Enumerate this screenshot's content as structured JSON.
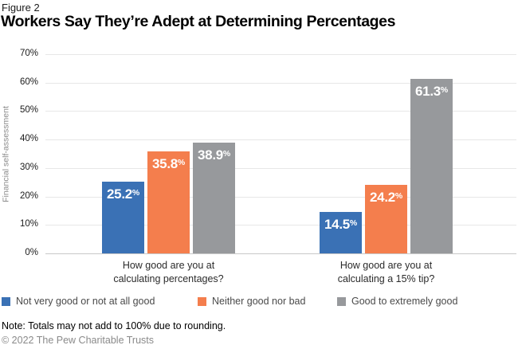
{
  "figure_label": "Figure 2",
  "title": "Workers Say They’re Adept at Determining Percentages",
  "chart_data": {
    "type": "bar",
    "title": "Workers Say They’re Adept at Determining Percentages",
    "xlabel": "",
    "ylabel": "Financial self-assessment",
    "ylim": [
      0,
      70
    ],
    "ytick_step": 10,
    "ytick_suffix": "%",
    "grid": true,
    "legend_position": "bottom-left",
    "categories": [
      "How good are you at\ncalculating percentages?",
      "How good are you at\ncalculating a 15% tip?"
    ],
    "series": [
      {
        "name": "Not very good or not at all good",
        "color": "#3A71B5",
        "values": [
          25.2,
          14.5
        ]
      },
      {
        "name": "Neither good nor bad",
        "color": "#F47E4D",
        "values": [
          35.8,
          24.2
        ]
      },
      {
        "name": "Good to extremely good",
        "color": "#97999C",
        "values": [
          38.9,
          61.3
        ]
      }
    ],
    "value_label_suffix": "%"
  },
  "note": "Note: Totals may not add to 100% due to rounding.",
  "copyright": "© 2022 The Pew Charitable Trusts",
  "colors": {
    "bar_blue": "#3A71B5",
    "bar_orange": "#F47E4D",
    "bar_gray": "#97999C",
    "gridline": "#E7E7E7",
    "axis_line": "#C8C8C8",
    "value_label_text": "#FFFFFF"
  }
}
